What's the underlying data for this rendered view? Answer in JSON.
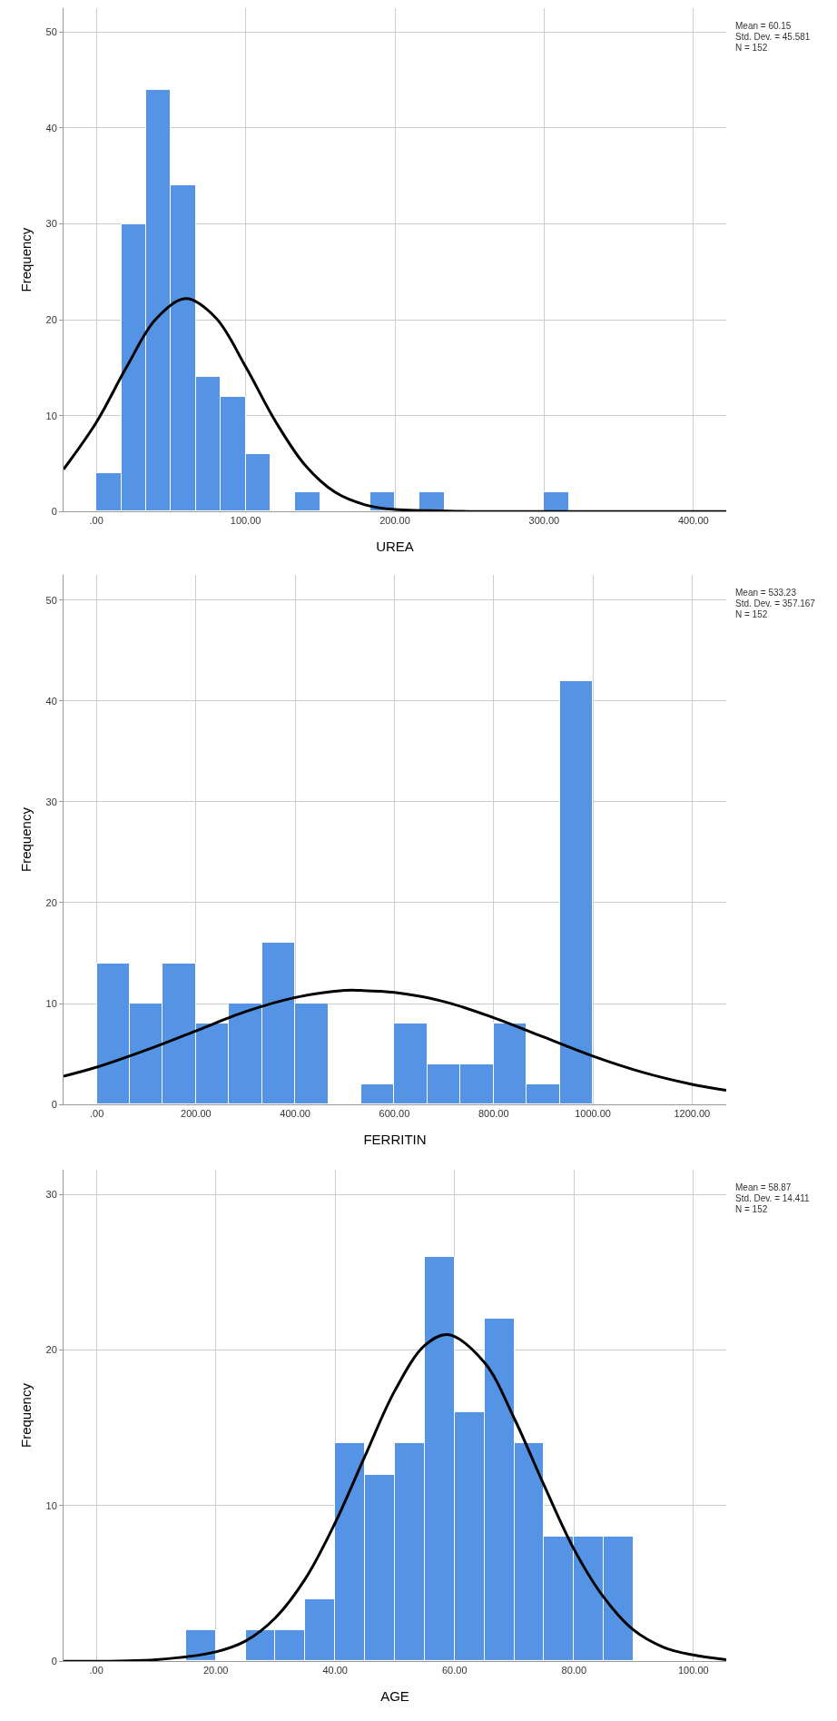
{
  "chart_data": [
    {
      "type": "histogram",
      "xlabel": "UREA",
      "ylabel": "Frequency",
      "color": "#5594e4",
      "grid": true,
      "bins": [
        0,
        16.67,
        33.33,
        50,
        66.67,
        83.33,
        100,
        116.67,
        133.33,
        150,
        166.67,
        183.33,
        200,
        216.67,
        233.33,
        250,
        266.67,
        283.33,
        300,
        316.67
      ],
      "values": [
        4,
        30,
        44,
        34,
        14,
        12,
        6,
        0,
        2,
        0,
        0,
        2,
        0,
        2,
        0,
        0,
        0,
        0,
        2
      ],
      "series": [
        {
          "type": "line",
          "color": "#000000",
          "x": [
            -22,
            0,
            20,
            40,
            60,
            80,
            100,
            120,
            140,
            160,
            180,
            200,
            220,
            250,
            300,
            350,
            422
          ],
          "values": [
            4.4,
            9.3,
            15.0,
            20.1,
            22.2,
            20.2,
            15.1,
            9.4,
            4.8,
            2.0,
            0.7,
            0.2,
            0.1,
            0,
            0,
            0,
            0
          ]
        }
      ],
      "xlim": [
        -22,
        422
      ],
      "ylim": [
        0,
        52.5
      ],
      "xticks": [
        {
          "value": 0,
          "label": ".00"
        },
        {
          "value": 100,
          "label": "100.00"
        },
        {
          "value": 200,
          "label": "200.00"
        },
        {
          "value": 300,
          "label": "300.00"
        },
        {
          "value": 400,
          "label": "400.00"
        }
      ],
      "yticks": [
        0,
        10,
        20,
        30,
        40,
        50
      ],
      "annotations": [
        "Mean = 60.15",
        "Std. Dev. = 45.581",
        "N = 152"
      ]
    },
    {
      "type": "histogram",
      "xlabel": "FERRITIN",
      "ylabel": "Frequency",
      "color": "#5594e4",
      "grid": true,
      "bins": [
        0,
        66.67,
        133.33,
        200,
        266.67,
        333.33,
        400,
        466.67,
        533.33,
        600,
        666.67,
        733.33,
        800,
        866.67,
        933.33,
        1000
      ],
      "values": [
        14,
        10,
        14,
        8,
        10,
        16,
        10,
        0,
        2,
        8,
        4,
        4,
        8,
        2,
        42
      ],
      "series": [
        {
          "type": "line",
          "color": "#000000",
          "x": [
            -67,
            0,
            100,
            200,
            300,
            400,
            500,
            533,
            600,
            700,
            800,
            900,
            1000,
            1100,
            1200,
            1269
          ],
          "values": [
            2.8,
            3.7,
            5.4,
            7.3,
            9.2,
            10.6,
            11.3,
            11.3,
            11.1,
            10.2,
            8.6,
            6.7,
            4.8,
            3.2,
            2.0,
            1.4
          ]
        }
      ],
      "xlim": [
        -67,
        1269
      ],
      "ylim": [
        0,
        52.5
      ],
      "xticks": [
        {
          "value": 0,
          "label": ".00"
        },
        {
          "value": 200,
          "label": "200.00"
        },
        {
          "value": 400,
          "label": "400.00"
        },
        {
          "value": 600,
          "label": "600.00"
        },
        {
          "value": 800,
          "label": "800.00"
        },
        {
          "value": 1000,
          "label": "1000.00"
        },
        {
          "value": 1200,
          "label": "1200.00"
        }
      ],
      "yticks": [
        0,
        10,
        20,
        30,
        40,
        50
      ],
      "annotations": [
        "Mean = 533.23",
        "Std. Dev. = 357.167",
        "N = 152"
      ]
    },
    {
      "type": "histogram",
      "xlabel": "AGE",
      "ylabel": "Frequency",
      "color": "#5594e4",
      "grid": true,
      "bins": [
        15,
        20,
        25,
        30,
        35,
        40,
        45,
        50,
        55,
        60,
        65,
        70,
        75,
        80,
        85,
        90
      ],
      "values": [
        2,
        0,
        2,
        2,
        4,
        14,
        12,
        14,
        26,
        16,
        22,
        14,
        8,
        8,
        8
      ],
      "series": [
        {
          "type": "line",
          "color": "#000000",
          "x": [
            -5.5,
            10,
            20,
            25,
            30,
            35,
            40,
            45,
            50,
            55,
            58.87,
            65,
            70,
            75,
            80,
            85,
            90,
            95,
            100,
            105.5
          ],
          "values": [
            0,
            0.1,
            0.6,
            1.3,
            2.8,
            5.3,
            8.9,
            13.2,
            17.4,
            20.3,
            21.0,
            19.2,
            15.6,
            11.3,
            7.2,
            4.1,
            2.0,
            0.9,
            0.4,
            0.1
          ]
        }
      ],
      "xlim": [
        -5.5,
        105.5
      ],
      "ylim": [
        0,
        31.6
      ],
      "xticks": [
        {
          "value": 0,
          "label": ".00"
        },
        {
          "value": 20,
          "label": "20.00"
        },
        {
          "value": 40,
          "label": "40.00"
        },
        {
          "value": 60,
          "label": "60.00"
        },
        {
          "value": 80,
          "label": "80.00"
        },
        {
          "value": 100,
          "label": "100.00"
        }
      ],
      "yticks": [
        0,
        10,
        20,
        30
      ],
      "annotations": [
        "Mean = 58.87",
        "Std. Dev. = 14.411",
        "N = 152"
      ]
    }
  ]
}
